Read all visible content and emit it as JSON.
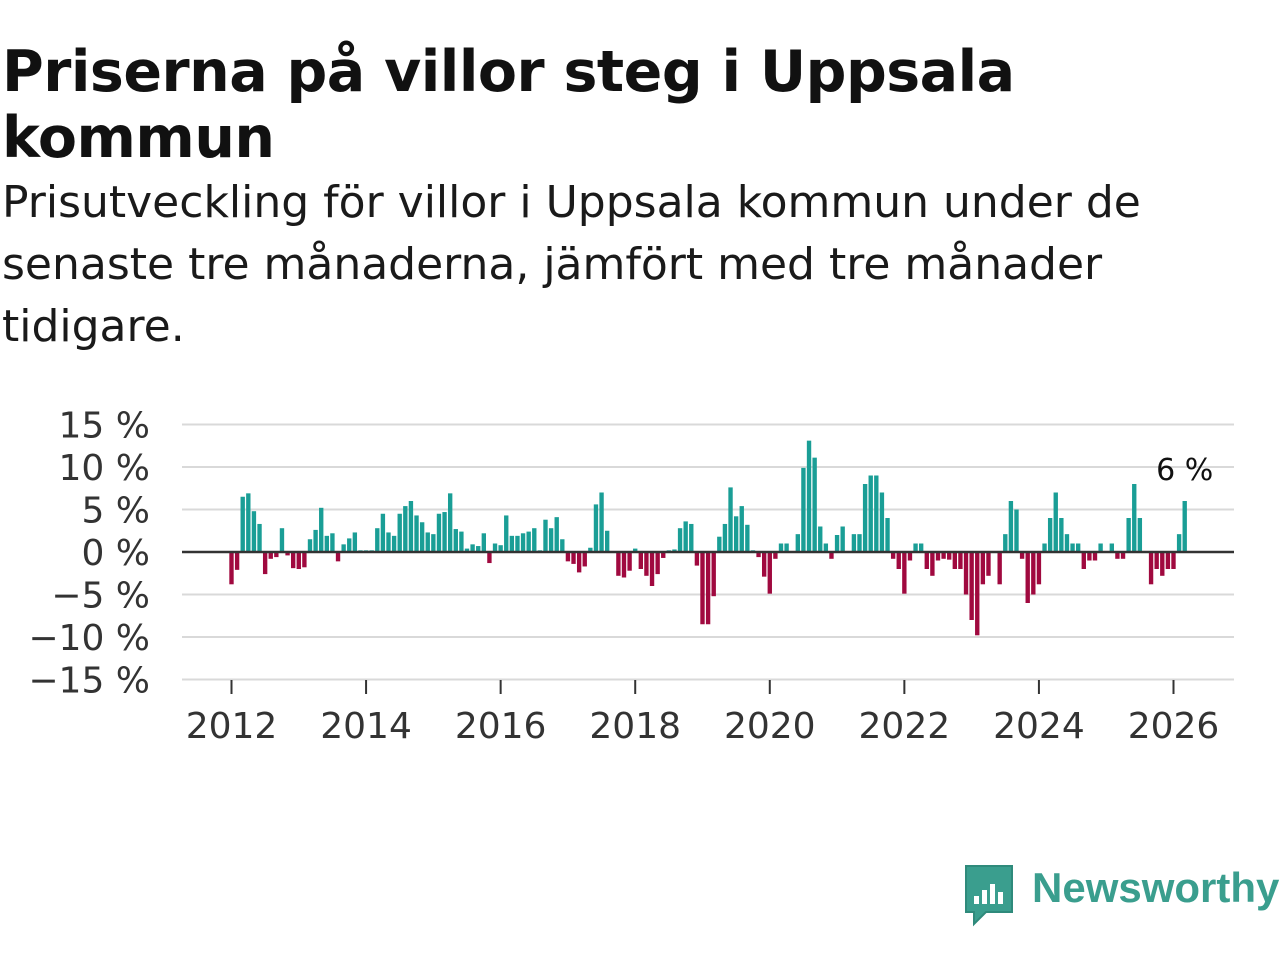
{
  "header": {
    "title": "Priserna på villor steg i Uppsala kommun",
    "subtitle": "Prisutveckling för villor i Uppsala kommun under de senaste tre månaderna, jämfört med tre månader tidigare."
  },
  "brand": {
    "name": "Newsworthy",
    "color": "#3a9e8e"
  },
  "colors": {
    "positive": "#1a9e96",
    "negative": "#a0093f",
    "grid": "#d9d9d9",
    "zero": "#333333"
  },
  "chart_data": {
    "type": "bar",
    "title": "Priserna på villor steg i Uppsala kommun",
    "xlabel": "",
    "ylabel": "",
    "unit": "%",
    "ylim": [
      -15,
      15
    ],
    "yticks": [
      15,
      10,
      5,
      0,
      -5,
      -10,
      -15
    ],
    "ytick_labels": [
      "15 %",
      "10 %",
      "5 %",
      "0 %",
      "−5 %",
      "−10 %",
      "−15 %"
    ],
    "xticks": [
      "2012",
      "2014",
      "2016",
      "2018",
      "2020",
      "2022",
      "2024",
      "2026"
    ],
    "grid": true,
    "start": "2012-01",
    "end": "2026-03",
    "last_value_label": "6 %",
    "values": [
      -3.8,
      -2.1,
      6.5,
      6.9,
      4.8,
      3.3,
      -2.6,
      -0.8,
      -0.6,
      2.8,
      -0.4,
      -1.9,
      -2.0,
      -1.8,
      1.5,
      2.6,
      5.2,
      1.9,
      2.2,
      -1.1,
      0.9,
      1.6,
      2.3,
      0.2,
      0.2,
      0.2,
      2.8,
      4.5,
      2.3,
      1.9,
      4.5,
      5.4,
      6.0,
      4.3,
      3.5,
      2.3,
      2.1,
      4.5,
      4.7,
      6.9,
      2.7,
      2.4,
      0.4,
      0.9,
      0.7,
      2.2,
      -1.3,
      1.0,
      0.8,
      4.3,
      1.9,
      1.9,
      2.2,
      2.4,
      2.8,
      0.2,
      3.8,
      2.8,
      4.1,
      1.5,
      -1.1,
      -1.4,
      -2.4,
      -1.7,
      0.5,
      5.6,
      7.0,
      2.5,
      -0.1,
      -2.8,
      -3.0,
      -2.2,
      0.4,
      -2.0,
      -2.8,
      -4.0,
      -2.6,
      -0.7,
      0.2,
      0.3,
      2.8,
      3.6,
      3.3,
      -1.6,
      -8.5,
      -8.5,
      -5.2,
      1.8,
      3.3,
      7.6,
      4.2,
      5.4,
      3.2,
      0.2,
      -0.6,
      -2.9,
      -4.9,
      -0.8,
      1.0,
      1.0,
      0.1,
      2.1,
      9.9,
      13.1,
      11.1,
      3.0,
      1.0,
      -0.8,
      2.0,
      3.0,
      0.1,
      2.1,
      2.1,
      8.0,
      9.0,
      9.0,
      7.0,
      4.0,
      -0.8,
      -2.0,
      -4.9,
      -1.0,
      1.0,
      1.0,
      -2.0,
      -2.8,
      -1.0,
      -0.8,
      -0.9,
      -2.0,
      -2.0,
      -5.0,
      -8.0,
      -9.8,
      -3.8,
      -2.8,
      0.1,
      -3.8,
      2.1,
      6.0,
      5.0,
      -0.8,
      -6.0,
      -5.0,
      -3.8,
      1.0,
      4.0,
      7.0,
      4.0,
      2.1,
      1.0,
      1.0,
      -2.0,
      -1.0,
      -1.0,
      1.0,
      0.1,
      1.0,
      -0.8,
      -0.8,
      4.0,
      8.0,
      4.0,
      0.1,
      -3.8,
      -2.0,
      -2.8,
      -2.0,
      -2.0,
      2.1,
      6.0
    ]
  }
}
